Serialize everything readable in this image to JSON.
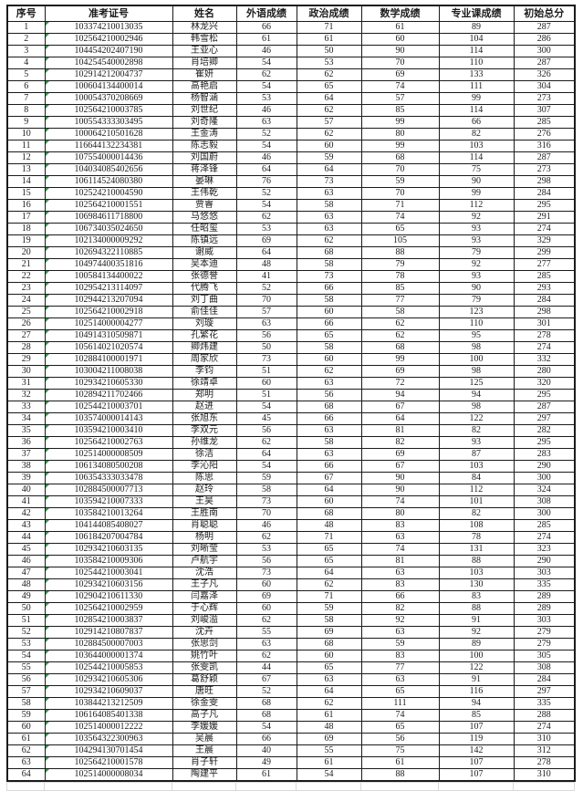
{
  "colors": {
    "table_border": "#1a1a1a",
    "text": "#1c1c1c",
    "text_marker_green": "#2f9e44",
    "empty_gridline_gray": "#d9d9d9",
    "background": "#ffffff"
  },
  "table": {
    "headers": [
      "序号",
      "准考证号",
      "姓名",
      "外语成绩",
      "政治成绩",
      "数学成绩",
      "专业课成绩",
      "初始总分"
    ],
    "rows": [
      [
        "1",
        "103374210013035",
        "林龙兴",
        "66",
        "71",
        "61",
        "89",
        "287"
      ],
      [
        "2",
        "102564210002946",
        "韩雪松",
        "61",
        "61",
        "60",
        "104",
        "286"
      ],
      [
        "3",
        "104454202407190",
        "王亚心",
        "46",
        "50",
        "90",
        "114",
        "300"
      ],
      [
        "4",
        "104254540002898",
        "肖培卿",
        "54",
        "53",
        "70",
        "110",
        "287"
      ],
      [
        "5",
        "102914212004737",
        "崔妍",
        "62",
        "62",
        "69",
        "133",
        "326"
      ],
      [
        "6",
        "100604134400014",
        "高艳启",
        "54",
        "65",
        "74",
        "111",
        "304"
      ],
      [
        "7",
        "100054370208669",
        "杨智涵",
        "53",
        "64",
        "57",
        "99",
        "273"
      ],
      [
        "8",
        "102564210003785",
        "刘世纪",
        "46",
        "62",
        "85",
        "114",
        "307"
      ],
      [
        "9",
        "100554333303495",
        "刘奇隆",
        "63",
        "57",
        "99",
        "66",
        "285"
      ],
      [
        "10",
        "100064210501628",
        "王金涛",
        "52",
        "62",
        "80",
        "82",
        "276"
      ],
      [
        "11",
        "116644132234381",
        "陈志毅",
        "54",
        "60",
        "99",
        "103",
        "316"
      ],
      [
        "12",
        "107554000014436",
        "刘国蔚",
        "46",
        "59",
        "68",
        "114",
        "287"
      ],
      [
        "13",
        "104034085402656",
        "蒋泽锋",
        "64",
        "64",
        "70",
        "75",
        "273"
      ],
      [
        "14",
        "106114524080380",
        "晏琳",
        "76",
        "73",
        "59",
        "90",
        "298"
      ],
      [
        "15",
        "102524210004590",
        "王伟乾",
        "52",
        "63",
        "70",
        "99",
        "284"
      ],
      [
        "16",
        "102564210001551",
        "贾睿",
        "54",
        "58",
        "71",
        "112",
        "295"
      ],
      [
        "17",
        "106984611718800",
        "马悠悠",
        "62",
        "63",
        "74",
        "92",
        "291"
      ],
      [
        "18",
        "106734035024650",
        "任昭玺",
        "53",
        "63",
        "65",
        "93",
        "274"
      ],
      [
        "19",
        "102134000009292",
        "陈镇远",
        "69",
        "62",
        "105",
        "93",
        "329"
      ],
      [
        "20",
        "102694322110885",
        "谢威",
        "64",
        "68",
        "88",
        "79",
        "299"
      ],
      [
        "21",
        "104974400351816",
        "吴本迪",
        "48",
        "58",
        "79",
        "92",
        "277"
      ],
      [
        "22",
        "100584134400022",
        "张德誉",
        "41",
        "73",
        "78",
        "93",
        "285"
      ],
      [
        "23",
        "102954213114097",
        "代腾飞",
        "52",
        "66",
        "85",
        "90",
        "293"
      ],
      [
        "24",
        "102944213207094",
        "刘丁曲",
        "70",
        "58",
        "77",
        "79",
        "284"
      ],
      [
        "25",
        "102564210002918",
        "俞佳佳",
        "57",
        "60",
        "58",
        "123",
        "298"
      ],
      [
        "26",
        "102514000004277",
        "刘璇",
        "63",
        "66",
        "62",
        "110",
        "301"
      ],
      [
        "27",
        "104914310509871",
        "孔繁花",
        "56",
        "65",
        "62",
        "95",
        "278"
      ],
      [
        "28",
        "105614021020574",
        "卿炜建",
        "50",
        "58",
        "68",
        "98",
        "274"
      ],
      [
        "29",
        "102884100001971",
        "周家欣",
        "73",
        "60",
        "99",
        "100",
        "332"
      ],
      [
        "30",
        "103004211008038",
        "李钧",
        "51",
        "62",
        "69",
        "98",
        "280"
      ],
      [
        "31",
        "102934210605330",
        "徐靖卓",
        "60",
        "63",
        "72",
        "125",
        "320"
      ],
      [
        "32",
        "102894211702466",
        "郑明",
        "51",
        "56",
        "94",
        "94",
        "295"
      ],
      [
        "33",
        "102544210003701",
        "赵进",
        "54",
        "68",
        "67",
        "98",
        "287"
      ],
      [
        "34",
        "103574000014143",
        "张旭东",
        "45",
        "66",
        "64",
        "122",
        "297"
      ],
      [
        "35",
        "103594210003410",
        "李双元",
        "56",
        "63",
        "81",
        "82",
        "282"
      ],
      [
        "36",
        "102564210002763",
        "孙维龙",
        "62",
        "58",
        "82",
        "93",
        "295"
      ],
      [
        "37",
        "102514000008509",
        "徐洁",
        "64",
        "63",
        "69",
        "87",
        "283"
      ],
      [
        "38",
        "106134080500208",
        "李沁阳",
        "54",
        "66",
        "67",
        "103",
        "290"
      ],
      [
        "39",
        "106354333033478",
        "陈思",
        "59",
        "67",
        "90",
        "84",
        "300"
      ],
      [
        "40",
        "102884500007713",
        "赵玲",
        "58",
        "64",
        "90",
        "112",
        "324"
      ],
      [
        "41",
        "103594210007333",
        "王昊",
        "73",
        "60",
        "74",
        "101",
        "308"
      ],
      [
        "42",
        "103584210013264",
        "王胜南",
        "70",
        "68",
        "80",
        "82",
        "300"
      ],
      [
        "43",
        "104144085408027",
        "肖聪聪",
        "46",
        "48",
        "83",
        "108",
        "285"
      ],
      [
        "44",
        "106184207004784",
        "杨明",
        "62",
        "71",
        "63",
        "78",
        "274"
      ],
      [
        "45",
        "102934210603135",
        "刘晰莹",
        "53",
        "65",
        "74",
        "131",
        "323"
      ],
      [
        "46",
        "103584210009306",
        "卢航宇",
        "56",
        "65",
        "81",
        "88",
        "290"
      ],
      [
        "47",
        "102544210003041",
        "沈浩",
        "73",
        "64",
        "63",
        "103",
        "303"
      ],
      [
        "48",
        "102934210603156",
        "王子凡",
        "60",
        "62",
        "83",
        "130",
        "335"
      ],
      [
        "49",
        "102904210611330",
        "闫嘉泽",
        "69",
        "71",
        "66",
        "83",
        "289"
      ],
      [
        "50",
        "102564210002959",
        "于心辉",
        "60",
        "59",
        "82",
        "88",
        "289"
      ],
      [
        "51",
        "102854210003837",
        "刘峻溢",
        "62",
        "58",
        "92",
        "91",
        "303"
      ],
      [
        "52",
        "102914210807837",
        "沈卉",
        "55",
        "69",
        "63",
        "92",
        "279"
      ],
      [
        "53",
        "102884500007003",
        "张思剑",
        "63",
        "68",
        "59",
        "89",
        "279"
      ],
      [
        "54",
        "103644000001374",
        "姚竹叶",
        "62",
        "60",
        "83",
        "100",
        "305"
      ],
      [
        "55",
        "102544210005853",
        "张雯凯",
        "44",
        "65",
        "77",
        "122",
        "308"
      ],
      [
        "56",
        "102934210605306",
        "葛舒颖",
        "67",
        "63",
        "63",
        "91",
        "284"
      ],
      [
        "57",
        "102934210609037",
        "唐旺",
        "52",
        "64",
        "65",
        "116",
        "297"
      ],
      [
        "58",
        "103844213212509",
        "徐金雯",
        "68",
        "62",
        "111",
        "94",
        "335"
      ],
      [
        "59",
        "106164085401338",
        "高子凡",
        "68",
        "61",
        "74",
        "85",
        "288"
      ],
      [
        "60",
        "102514000012222",
        "李媛媛",
        "54",
        "48",
        "65",
        "107",
        "274"
      ],
      [
        "61",
        "103564322300963",
        "吴晨",
        "66",
        "69",
        "56",
        "119",
        "310"
      ],
      [
        "62",
        "104294130701454",
        "王晨",
        "40",
        "55",
        "75",
        "142",
        "312"
      ],
      [
        "63",
        "102564210001578",
        "肖子轩",
        "49",
        "61",
        "61",
        "107",
        "278"
      ],
      [
        "64",
        "102514000008034",
        "陶建平",
        "61",
        "54",
        "88",
        "107",
        "310"
      ]
    ]
  }
}
